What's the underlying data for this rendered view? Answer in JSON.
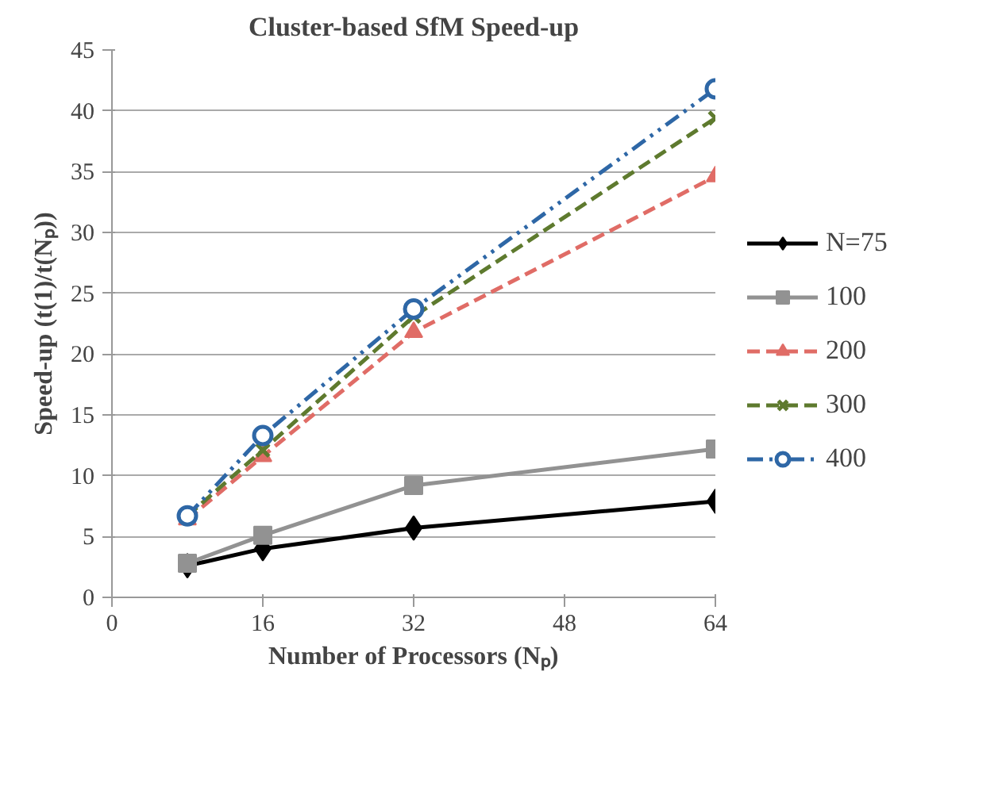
{
  "chart_data": {
    "type": "line",
    "title": "Cluster-based SfM Speed-up",
    "xlabel": "Number of Processors (Nₚ)",
    "ylabel": "Speed-up (t(1)/t(Nₚ))",
    "x": [
      8,
      16,
      32,
      64
    ],
    "series": [
      {
        "name": "N=75",
        "color": "#000000",
        "values": [
          2.6,
          4.0,
          5.7,
          7.9
        ],
        "marker": "diamond",
        "line_style": "solid"
      },
      {
        "name": "100",
        "color": "#929292",
        "values": [
          2.8,
          5.1,
          9.2,
          12.2
        ],
        "marker": "square",
        "line_style": "solid"
      },
      {
        "name": "200",
        "color": "#e06c66",
        "values": [
          6.4,
          11.6,
          21.8,
          34.6
        ],
        "marker": "triangle",
        "line_style": "dashed"
      },
      {
        "name": "300",
        "color": "#5e7a2e",
        "values": [
          6.7,
          12.1,
          23.1,
          39.4
        ],
        "marker": "cross",
        "line_style": "dashed"
      },
      {
        "name": "400",
        "color": "#2e67a6",
        "values": [
          6.7,
          13.3,
          23.7,
          41.8
        ],
        "marker": "circle",
        "line_style": "dashdot"
      }
    ],
    "xlim": [
      0,
      64
    ],
    "xticks": [
      0,
      16,
      32,
      48,
      64
    ],
    "ylim": [
      0,
      45
    ],
    "yticks": [
      0,
      5,
      10,
      15,
      20,
      25,
      30,
      35,
      40,
      45
    ],
    "grid": "y",
    "legend": "right"
  }
}
